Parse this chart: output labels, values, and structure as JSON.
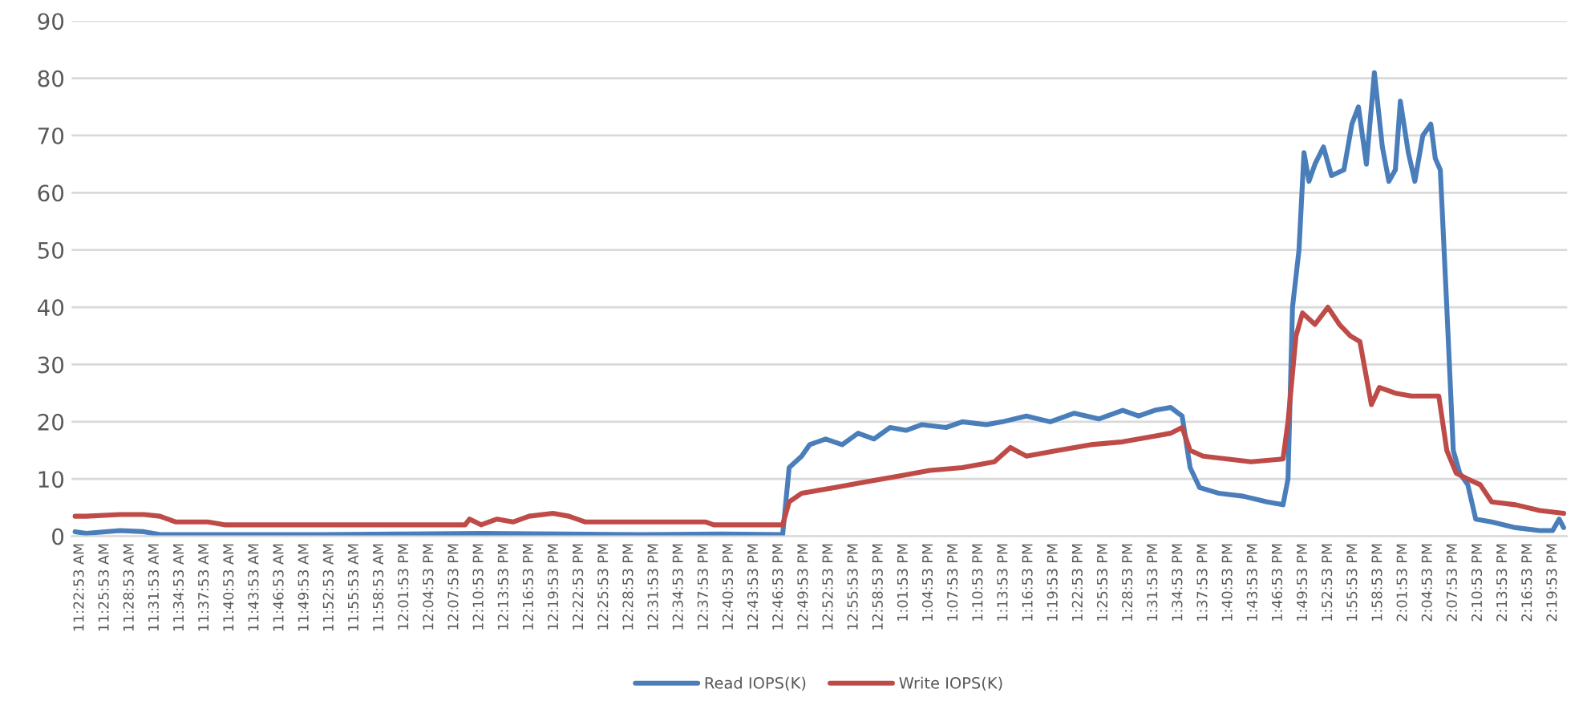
{
  "chart_data": {
    "type": "line",
    "xlim": [
      11.365,
      14.36
    ],
    "ylim": [
      0,
      90
    ],
    "yticks": [
      0,
      10,
      20,
      30,
      40,
      50,
      60,
      70,
      80,
      90
    ],
    "grid": "y",
    "legend": "bottom",
    "marker": "none",
    "line_style": "solid",
    "xticks": [
      {
        "value": 11.3814,
        "label": "11:22:53 AM"
      },
      {
        "value": 11.4314,
        "label": "11:25:53 AM"
      },
      {
        "value": 11.4814,
        "label": "11:28:53 AM"
      },
      {
        "value": 11.5314,
        "label": "11:31:53 AM"
      },
      {
        "value": 11.5814,
        "label": "11:34:53 AM"
      },
      {
        "value": 11.6314,
        "label": "11:37:53 AM"
      },
      {
        "value": 11.6814,
        "label": "11:40:53 AM"
      },
      {
        "value": 11.7314,
        "label": "11:43:53 AM"
      },
      {
        "value": 11.7814,
        "label": "11:46:53 AM"
      },
      {
        "value": 11.8314,
        "label": "11:49:53 AM"
      },
      {
        "value": 11.8814,
        "label": "11:52:53 AM"
      },
      {
        "value": 11.9314,
        "label": "11:55:53 AM"
      },
      {
        "value": 11.9814,
        "label": "11:58:53 AM"
      },
      {
        "value": 12.0314,
        "label": "12:01:53 PM"
      },
      {
        "value": 12.0814,
        "label": "12:04:53 PM"
      },
      {
        "value": 12.1314,
        "label": "12:07:53 PM"
      },
      {
        "value": 12.1814,
        "label": "12:10:53 PM"
      },
      {
        "value": 12.2314,
        "label": "12:13:53 PM"
      },
      {
        "value": 12.2814,
        "label": "12:16:53 PM"
      },
      {
        "value": 12.3314,
        "label": "12:19:53 PM"
      },
      {
        "value": 12.3814,
        "label": "12:22:53 PM"
      },
      {
        "value": 12.4314,
        "label": "12:25:53 PM"
      },
      {
        "value": 12.4814,
        "label": "12:28:53 PM"
      },
      {
        "value": 12.5314,
        "label": "12:31:53 PM"
      },
      {
        "value": 12.5814,
        "label": "12:34:53 PM"
      },
      {
        "value": 12.6314,
        "label": "12:37:53 PM"
      },
      {
        "value": 12.6814,
        "label": "12:40:53 PM"
      },
      {
        "value": 12.7314,
        "label": "12:43:53 PM"
      },
      {
        "value": 12.7814,
        "label": "12:46:53 PM"
      },
      {
        "value": 12.8314,
        "label": "12:49:53 PM"
      },
      {
        "value": 12.8814,
        "label": "12:52:53 PM"
      },
      {
        "value": 12.9314,
        "label": "12:55:53 PM"
      },
      {
        "value": 12.9814,
        "label": "12:58:53 PM"
      },
      {
        "value": 13.0314,
        "label": "1:01:53 PM"
      },
      {
        "value": 13.0814,
        "label": "1:04:53 PM"
      },
      {
        "value": 13.1314,
        "label": "1:07:53 PM"
      },
      {
        "value": 13.1814,
        "label": "1:10:53 PM"
      },
      {
        "value": 13.2314,
        "label": "1:13:53 PM"
      },
      {
        "value": 13.2814,
        "label": "1:16:53 PM"
      },
      {
        "value": 13.3314,
        "label": "1:19:53 PM"
      },
      {
        "value": 13.3814,
        "label": "1:22:53 PM"
      },
      {
        "value": 13.4314,
        "label": "1:25:53 PM"
      },
      {
        "value": 13.4814,
        "label": "1:28:53 PM"
      },
      {
        "value": 13.5314,
        "label": "1:31:53 PM"
      },
      {
        "value": 13.5814,
        "label": "1:34:53 PM"
      },
      {
        "value": 13.6314,
        "label": "1:37:53 PM"
      },
      {
        "value": 13.6814,
        "label": "1:40:53 PM"
      },
      {
        "value": 13.7314,
        "label": "1:43:53 PM"
      },
      {
        "value": 13.7814,
        "label": "1:46:53 PM"
      },
      {
        "value": 13.8314,
        "label": "1:49:53 PM"
      },
      {
        "value": 13.8814,
        "label": "1:52:53 PM"
      },
      {
        "value": 13.9314,
        "label": "1:55:53 PM"
      },
      {
        "value": 13.9814,
        "label": "1:58:53 PM"
      },
      {
        "value": 14.0314,
        "label": "2:01:53 PM"
      },
      {
        "value": 14.0814,
        "label": "2:04:53 PM"
      },
      {
        "value": 14.1314,
        "label": "2:07:53 PM"
      },
      {
        "value": 14.1814,
        "label": "2:10:53 PM"
      },
      {
        "value": 14.2314,
        "label": "2:13:53 PM"
      },
      {
        "value": 14.2814,
        "label": "2:16:53 PM"
      },
      {
        "value": 14.3314,
        "label": "2:19:53 PM"
      }
    ],
    "series": [
      {
        "name": "Read IOPS(K)",
        "color": "#4a7ebb",
        "x": [
          11.372,
          11.394,
          11.462,
          11.51,
          11.542,
          11.703,
          11.863,
          12.024,
          12.185,
          12.345,
          12.506,
          12.667,
          12.789,
          12.802,
          12.827,
          12.843,
          12.875,
          12.908,
          12.94,
          12.972,
          13.004,
          13.036,
          13.068,
          13.116,
          13.149,
          13.197,
          13.229,
          13.277,
          13.325,
          13.373,
          13.422,
          13.47,
          13.502,
          13.534,
          13.566,
          13.589,
          13.605,
          13.624,
          13.663,
          13.711,
          13.759,
          13.791,
          13.801,
          13.81,
          13.823,
          13.833,
          13.843,
          13.855,
          13.872,
          13.888,
          13.913,
          13.929,
          13.942,
          13.958,
          13.974,
          13.99,
          14.003,
          14.016,
          14.026,
          14.042,
          14.055,
          14.071,
          14.087,
          14.096,
          14.106,
          14.119,
          14.132,
          14.145,
          14.161,
          14.177,
          14.209,
          14.257,
          14.305,
          14.331,
          14.344,
          14.353
        ],
        "values": [
          0.8,
          0.5,
          1.0,
          0.8,
          0.3,
          0.3,
          0.3,
          0.4,
          0.5,
          0.4,
          0.3,
          0.4,
          0.3,
          12,
          14,
          16,
          17,
          16,
          18,
          17,
          19,
          18.5,
          19.5,
          19,
          20,
          19.5,
          20,
          21,
          20,
          21.5,
          20.5,
          22,
          21,
          22,
          22.5,
          21,
          12,
          8.5,
          7.5,
          7,
          6,
          5.5,
          10,
          40,
          50,
          67,
          62,
          65,
          68,
          63,
          64,
          72,
          75,
          65,
          81,
          68,
          62,
          64,
          76,
          67,
          62,
          70,
          72,
          66,
          64,
          40,
          15,
          11,
          9,
          3,
          2.5,
          1.5,
          1,
          1,
          3,
          1.5
        ]
      },
      {
        "name": "Write IOPS(K)",
        "color": "#be4b48",
        "x": [
          11.372,
          11.394,
          11.462,
          11.51,
          11.542,
          11.574,
          11.638,
          11.671,
          11.863,
          12.024,
          12.153,
          12.162,
          12.185,
          12.217,
          12.249,
          12.281,
          12.329,
          12.361,
          12.394,
          12.442,
          12.506,
          12.635,
          12.651,
          12.789,
          12.802,
          12.827,
          12.892,
          12.956,
          13.02,
          13.084,
          13.149,
          13.213,
          13.245,
          13.277,
          13.341,
          13.406,
          13.47,
          13.534,
          13.566,
          13.589,
          13.605,
          13.631,
          13.679,
          13.727,
          13.791,
          13.801,
          13.817,
          13.83,
          13.855,
          13.881,
          13.904,
          13.926,
          13.945,
          13.968,
          13.984,
          14.016,
          14.048,
          14.103,
          14.119,
          14.138,
          14.161,
          14.186,
          14.209,
          14.257,
          14.305,
          14.353
        ],
        "values": [
          3.5,
          3.5,
          3.8,
          3.8,
          3.5,
          2.5,
          2.5,
          2,
          2,
          2,
          2,
          3,
          2,
          3,
          2.5,
          3.5,
          4,
          3.5,
          2.5,
          2.5,
          2.5,
          2.5,
          2,
          2,
          6,
          7.5,
          8.5,
          9.5,
          10.5,
          11.5,
          12,
          13,
          15.5,
          14,
          15,
          16,
          16.5,
          17.5,
          18,
          19,
          15,
          14,
          13.5,
          13,
          13.5,
          20,
          35,
          39,
          37,
          40,
          37,
          35,
          34,
          23,
          26,
          25,
          24.5,
          24.5,
          15,
          11,
          10,
          9,
          6,
          5.5,
          4.5,
          4
        ]
      }
    ]
  }
}
